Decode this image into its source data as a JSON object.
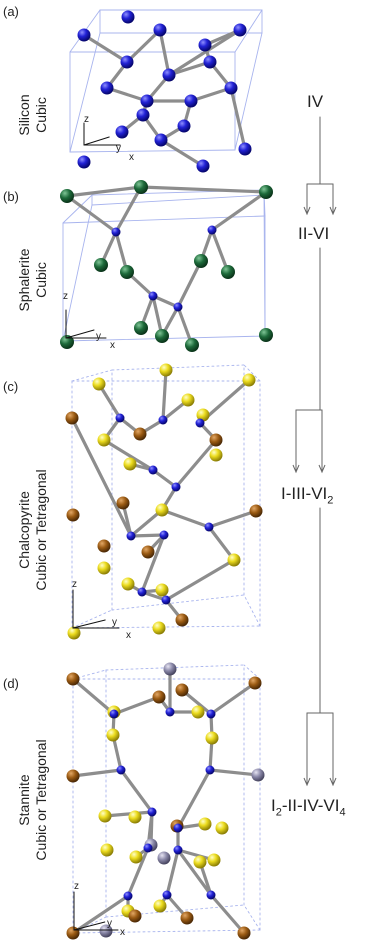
{
  "panels": [
    {
      "label": "(a)",
      "name_lines": [
        "Silicon",
        "Cubic"
      ]
    },
    {
      "label": "(b)",
      "name_lines": [
        "Sphalerite",
        "Cubic"
      ]
    },
    {
      "label": "(c)",
      "name_lines": [
        "Chalcopyrite",
        "Cubic or Tetragonal"
      ]
    },
    {
      "label": "(d)",
      "name_lines": [
        "Stannite",
        "Cubic or Tetragonal"
      ]
    }
  ],
  "axes": {
    "x": "x",
    "y": "y",
    "z": "z"
  },
  "flow": {
    "n1": "IV",
    "n2": "II-VI",
    "n3": {
      "t1": "I-III-VI",
      "s1": "2"
    },
    "n4": {
      "t1": "I",
      "s1": "2",
      "t2": "-II-IV-VI",
      "s2": "4"
    }
  },
  "colors": {
    "si": "#1a1acc",
    "green": "#1d6a3a",
    "yellow": "#e8d81a",
    "brown": "#9a5a12",
    "grey": "#8a88a8",
    "bond": "#8d8d8d",
    "cell": "#a8b4ee"
  }
}
